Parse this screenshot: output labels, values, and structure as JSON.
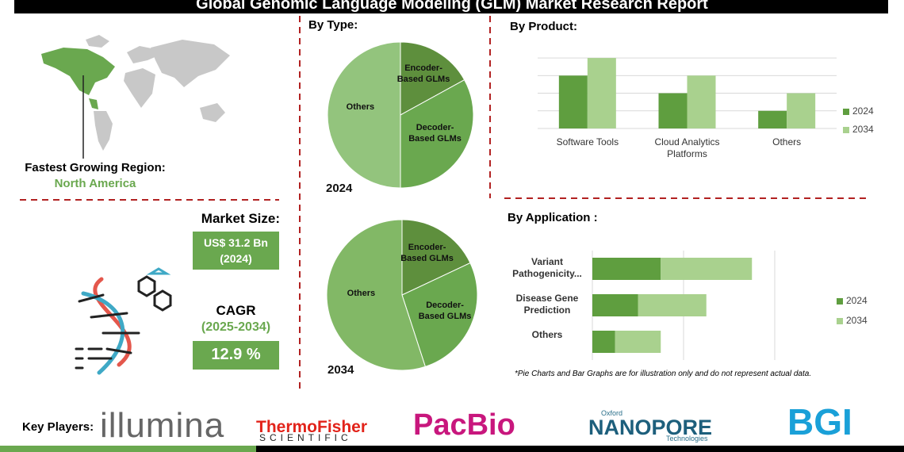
{
  "header": {
    "title": "Global Genomic Language Modeling (GLM) Market Research Report"
  },
  "summary": {
    "region": {
      "label": "Fastest Growing Region:",
      "value": "North America"
    },
    "market_size": {
      "label": "Market Size:",
      "value": "US$ 31.2 Bn",
      "year": "(2024)"
    },
    "cagr": {
      "label": "CAGR",
      "period": "(2025-2034)",
      "value": "12.9 %"
    }
  },
  "by_type": {
    "title": "By Type:",
    "pies": [
      {
        "year": "2024",
        "slices": [
          {
            "name": "Encoder-Based GLMs",
            "value": 17,
            "color": "#5e8f3d"
          },
          {
            "name": "Decoder-Based GLMs",
            "value": 33,
            "color": "#6aa84f"
          },
          {
            "name": "Others",
            "value": 50,
            "color": "#93c47d"
          }
        ]
      },
      {
        "year": "2034",
        "slices": [
          {
            "name": "Encoder-Based GLMs",
            "value": 18,
            "color": "#5e8f3d"
          },
          {
            "name": "Decoder-Based GLMs",
            "value": 27,
            "color": "#6aa84f"
          },
          {
            "name": "Others",
            "value": 55,
            "color": "#82b866"
          }
        ]
      }
    ]
  },
  "by_product": {
    "title": "By Product:",
    "categories": [
      "Software Tools",
      "Cloud Analytics Platforms",
      "Others"
    ],
    "series": [
      {
        "name": "2024",
        "color": "#5f9e3f",
        "values": [
          3,
          2,
          1
        ]
      },
      {
        "name": "2034",
        "color": "#a9d18e",
        "values": [
          4,
          3,
          2
        ]
      }
    ],
    "ylim": [
      0,
      4.5
    ],
    "yticks": [
      0,
      1,
      2,
      3,
      4
    ]
  },
  "by_application": {
    "title": "By Application :",
    "categories": [
      "Variant Pathogenicity...",
      "Disease Gene Prediction",
      "Others"
    ],
    "series": [
      {
        "name": "2024",
        "color": "#5f9e3f",
        "values": [
          3,
          2,
          1
        ]
      },
      {
        "name": "2034",
        "color": "#a9d18e",
        "values": [
          4,
          3,
          2
        ]
      }
    ],
    "xlim": [
      0,
      8
    ],
    "xticks": [
      0,
      4,
      8
    ]
  },
  "note": "*Pie Charts and Bar Graphs are for illustration only and do not represent actual data.",
  "key_players": {
    "label": "Key Players:",
    "companies": [
      "illumina",
      "ThermoFisher",
      "PacBio",
      "NANOPORE",
      "BGI"
    ],
    "companies_sub": [
      "SCIENTIFIC",
      "Oxford",
      "Technologies"
    ]
  }
}
